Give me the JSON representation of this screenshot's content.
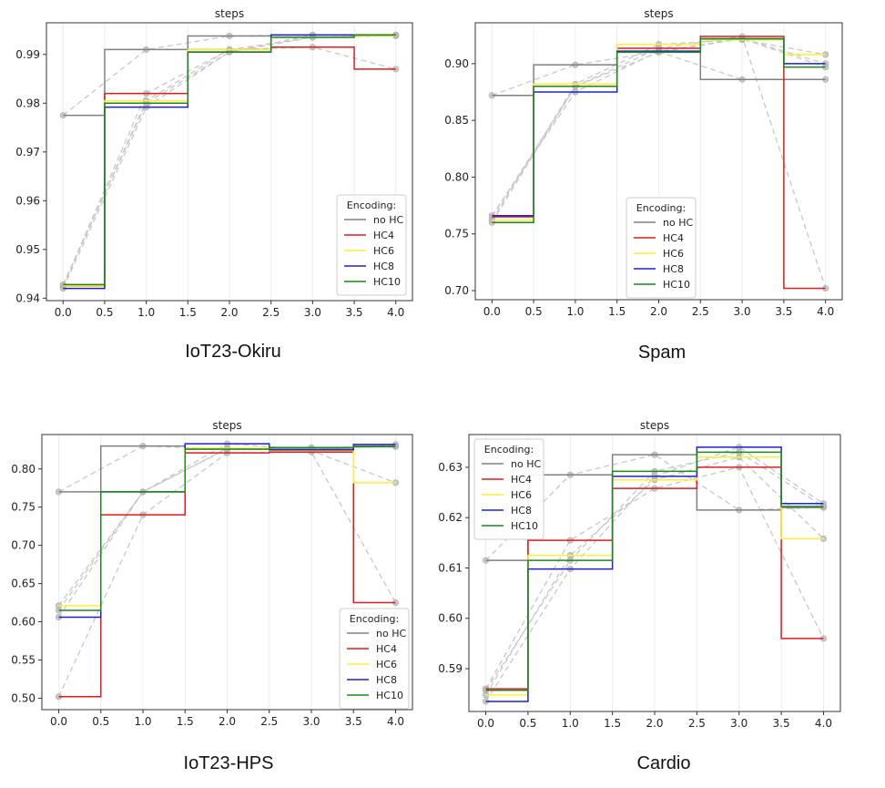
{
  "x_ticks": [
    "0.0",
    "0.5",
    "1.0",
    "1.5",
    "2.0",
    "2.5",
    "3.0",
    "3.5",
    "4.0"
  ],
  "colors": {
    "no HC": "#808080",
    "HC4": "#e41a1c",
    "HC6": "#ffee33",
    "HC8": "#1f1fd6",
    "HC10": "#1a8a1a",
    "dashed": "#c8c8c8",
    "marker": "#bdbdbd"
  },
  "chart_data": [
    {
      "type": "line",
      "title": "steps",
      "caption": "IoT23-Okiru",
      "xlabel": "",
      "ylabel": "",
      "x": [
        0,
        1,
        2,
        3,
        4
      ],
      "xlim": [
        -0.2,
        4.2
      ],
      "ylim": [
        0.9395,
        0.9965
      ],
      "yticks": [
        0.94,
        0.95,
        0.96,
        0.97,
        0.98,
        0.99
      ],
      "ytick_labels": [
        "0.94",
        "0.95",
        "0.96",
        "0.97",
        "0.98",
        "0.99"
      ],
      "legend": {
        "title": "Encoding:",
        "position": "lower-right"
      },
      "series": [
        {
          "name": "no HC",
          "values": [
            0.9775,
            0.991,
            0.9938,
            0.994,
            0.994
          ]
        },
        {
          "name": "HC4",
          "values": [
            0.9425,
            0.982,
            0.991,
            0.9915,
            0.987
          ]
        },
        {
          "name": "HC6",
          "values": [
            0.9425,
            0.9805,
            0.991,
            0.9935,
            0.9938
          ]
        },
        {
          "name": "HC8",
          "values": [
            0.942,
            0.9792,
            0.9905,
            0.994,
            0.994
          ]
        },
        {
          "name": "HC10",
          "values": [
            0.9428,
            0.98,
            0.9905,
            0.9935,
            0.994
          ]
        }
      ]
    },
    {
      "type": "line",
      "title": "steps",
      "caption": "Spam",
      "xlabel": "",
      "ylabel": "",
      "x": [
        0,
        1,
        2,
        3,
        4
      ],
      "xlim": [
        -0.2,
        4.2
      ],
      "ylim": [
        0.692,
        0.936
      ],
      "yticks": [
        0.7,
        0.75,
        0.8,
        0.85,
        0.9
      ],
      "ytick_labels": [
        "0.70",
        "0.75",
        "0.80",
        "0.85",
        "0.90"
      ],
      "legend": {
        "title": "Encoding:",
        "position": "lower-center"
      },
      "series": [
        {
          "name": "no HC",
          "values": [
            0.872,
            0.899,
            0.9105,
            0.886,
            0.886
          ]
        },
        {
          "name": "HC4",
          "values": [
            0.765,
            0.88,
            0.9135,
            0.924,
            0.702
          ]
        },
        {
          "name": "HC6",
          "values": [
            0.762,
            0.882,
            0.917,
            0.921,
            0.908
          ]
        },
        {
          "name": "HC8",
          "values": [
            0.766,
            0.875,
            0.911,
            0.922,
            0.9
          ]
        },
        {
          "name": "HC10",
          "values": [
            0.76,
            0.88,
            0.91,
            0.922,
            0.897
          ]
        }
      ]
    },
    {
      "type": "line",
      "title": "steps",
      "caption": "IoT23-HPS",
      "xlabel": "",
      "ylabel": "",
      "x": [
        0,
        1,
        2,
        3,
        4
      ],
      "xlim": [
        -0.2,
        4.2
      ],
      "ylim": [
        0.485,
        0.845
      ],
      "yticks": [
        0.5,
        0.55,
        0.6,
        0.65,
        0.7,
        0.75,
        0.8
      ],
      "ytick_labels": [
        "0.50",
        "0.55",
        "0.60",
        "0.65",
        "0.70",
        "0.75",
        "0.80"
      ],
      "legend": {
        "title": "Encoding:",
        "position": "lower-right"
      },
      "series": [
        {
          "name": "no HC",
          "values": [
            0.77,
            0.83,
            0.826,
            0.826,
            0.83
          ]
        },
        {
          "name": "HC4",
          "values": [
            0.502,
            0.74,
            0.821,
            0.822,
            0.625
          ]
        },
        {
          "name": "HC6",
          "values": [
            0.621,
            0.77,
            0.827,
            0.824,
            0.782
          ]
        },
        {
          "name": "HC8",
          "values": [
            0.606,
            0.77,
            0.833,
            0.825,
            0.832
          ]
        },
        {
          "name": "HC10",
          "values": [
            0.615,
            0.77,
            0.826,
            0.828,
            0.829
          ]
        }
      ]
    },
    {
      "type": "line",
      "title": "steps",
      "caption": "Cardio",
      "xlabel": "",
      "ylabel": "",
      "x": [
        0,
        1,
        2,
        3,
        4
      ],
      "xlim": [
        -0.2,
        4.2
      ],
      "ylim": [
        0.5815,
        0.6365
      ],
      "yticks": [
        0.59,
        0.6,
        0.61,
        0.62,
        0.63
      ],
      "ytick_labels": [
        "0.59",
        "0.60",
        "0.61",
        "0.62",
        "0.63"
      ],
      "legend": {
        "title": "Encoding:",
        "position": "upper-left"
      },
      "series": [
        {
          "name": "no HC",
          "values": [
            0.6115,
            0.6285,
            0.6325,
            0.6215,
            0.622
          ]
        },
        {
          "name": "HC4",
          "values": [
            0.586,
            0.6155,
            0.6258,
            0.63,
            0.596
          ]
        },
        {
          "name": "HC6",
          "values": [
            0.5848,
            0.6125,
            0.6275,
            0.632,
            0.6158
          ]
        },
        {
          "name": "HC8",
          "values": [
            0.5835,
            0.6098,
            0.6282,
            0.634,
            0.6228
          ]
        },
        {
          "name": "HC10",
          "values": [
            0.5857,
            0.6115,
            0.6292,
            0.633,
            0.6222
          ]
        }
      ]
    }
  ]
}
